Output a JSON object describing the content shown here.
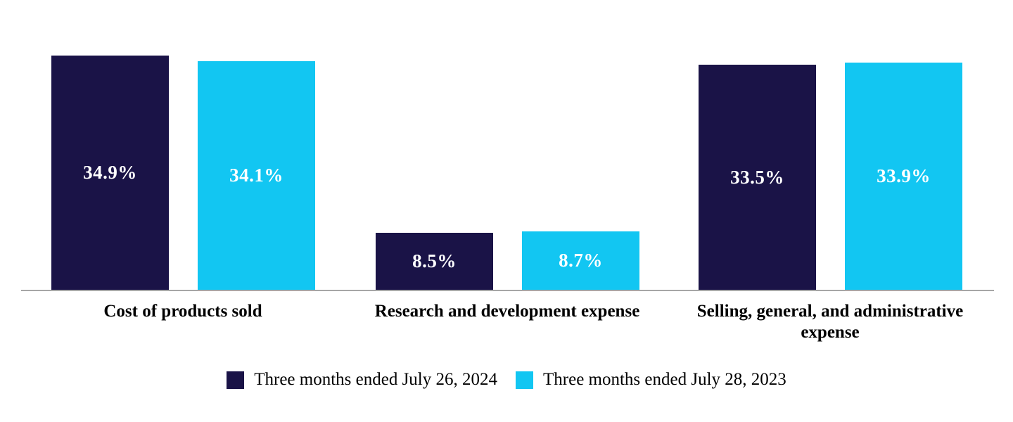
{
  "chart_data": {
    "type": "bar",
    "title": "",
    "xlabel": "",
    "ylabel": "",
    "categories": [
      "Cost of products sold",
      "Research and development expense",
      "Selling, general, and administrative expense"
    ],
    "series": [
      {
        "name": "Three months ended July 26, 2024",
        "color": "#1A1347",
        "values": [
          34.9,
          8.5,
          33.5
        ]
      },
      {
        "name": "Three months ended July 28, 2023",
        "color": "#12C6F2",
        "values": [
          34.1,
          8.7,
          33.9
        ]
      }
    ],
    "value_suffix": "%",
    "data_labels": [
      [
        "34.9%",
        "8.5%",
        "33.5%"
      ],
      [
        "34.1%",
        "8.7%",
        "33.9%"
      ]
    ],
    "ylim": [
      0,
      36
    ],
    "grid": false,
    "y_axis_visible": false,
    "x_axis_line_color": "#A6A6A6",
    "data_label_color": "#FFFFFF",
    "category_label_color": "#000000",
    "background_color": "#FFFFFF",
    "legend_position": "bottom"
  }
}
